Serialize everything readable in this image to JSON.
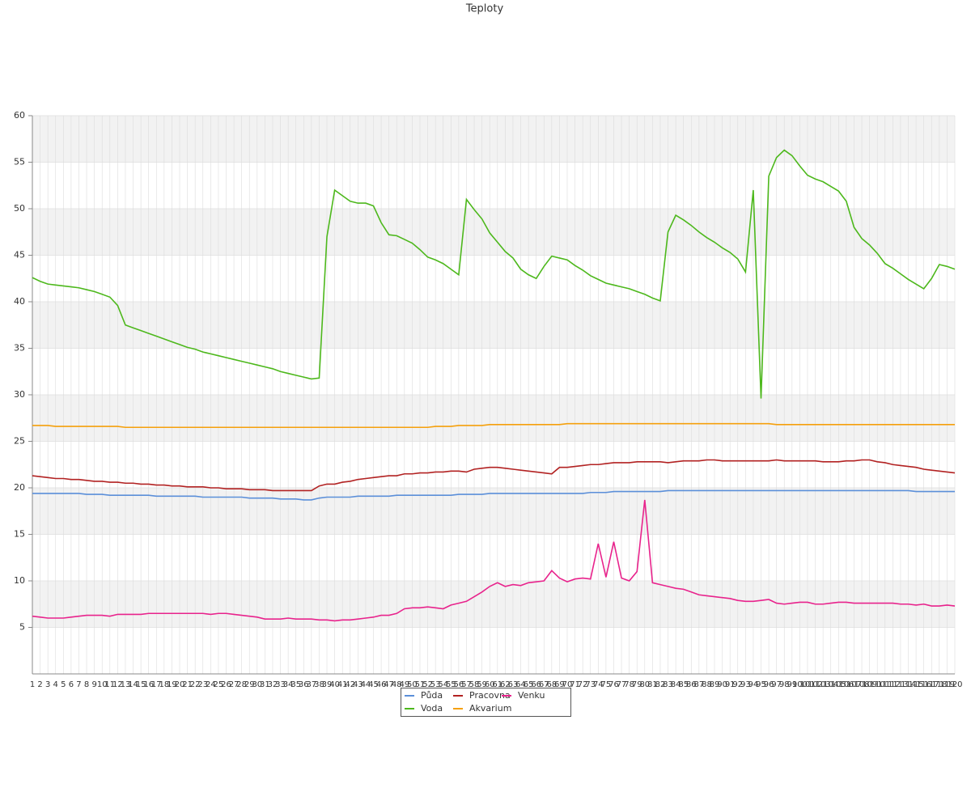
{
  "chart_data": {
    "type": "line",
    "title": "Teploty",
    "x": [
      1,
      2,
      3,
      4,
      5,
      6,
      7,
      8,
      9,
      10,
      11,
      12,
      13,
      14,
      15,
      16,
      17,
      18,
      19,
      20,
      21,
      22,
      23,
      24,
      25,
      26,
      27,
      28,
      29,
      30,
      31,
      32,
      33,
      34,
      35,
      36,
      37,
      38,
      39,
      40,
      41,
      42,
      43,
      44,
      45,
      46,
      47,
      48,
      49,
      50,
      51,
      52,
      53,
      54,
      55,
      56,
      57,
      58,
      59,
      60,
      61,
      62,
      63,
      64,
      65,
      66,
      67,
      68,
      69,
      70,
      71,
      72,
      73,
      74,
      75,
      76,
      77,
      78,
      79,
      80,
      81,
      82,
      83,
      84,
      85,
      86,
      87,
      88,
      89,
      90,
      91,
      92,
      93,
      94,
      95,
      96,
      97,
      98,
      99,
      100,
      101,
      102,
      103,
      104,
      105,
      106,
      107,
      108,
      109,
      110,
      111,
      112,
      113,
      114,
      115,
      116,
      117,
      118,
      119,
      120
    ],
    "xlim": [
      1,
      120
    ],
    "ylim": [
      0,
      60
    ],
    "yticks": [
      5,
      10,
      15,
      20,
      25,
      30,
      35,
      40,
      45,
      50,
      55,
      60
    ],
    "grid": true,
    "series": [
      {
        "name": "Půda",
        "color": "#5b8fd9",
        "values": [
          19.4,
          19.4,
          19.4,
          19.4,
          19.4,
          19.4,
          19.4,
          19.3,
          19.3,
          19.3,
          19.2,
          19.2,
          19.2,
          19.2,
          19.2,
          19.2,
          19.1,
          19.1,
          19.1,
          19.1,
          19.1,
          19.1,
          19.0,
          19.0,
          19.0,
          19.0,
          19.0,
          19.0,
          18.9,
          18.9,
          18.9,
          18.9,
          18.8,
          18.8,
          18.8,
          18.7,
          18.7,
          18.9,
          19.0,
          19.0,
          19.0,
          19.0,
          19.1,
          19.1,
          19.1,
          19.1,
          19.1,
          19.2,
          19.2,
          19.2,
          19.2,
          19.2,
          19.2,
          19.2,
          19.2,
          19.3,
          19.3,
          19.3,
          19.3,
          19.4,
          19.4,
          19.4,
          19.4,
          19.4,
          19.4,
          19.4,
          19.4,
          19.4,
          19.4,
          19.4,
          19.4,
          19.4,
          19.5,
          19.5,
          19.5,
          19.6,
          19.6,
          19.6,
          19.6,
          19.6,
          19.6,
          19.6,
          19.7,
          19.7,
          19.7,
          19.7,
          19.7,
          19.7,
          19.7,
          19.7,
          19.7,
          19.7,
          19.7,
          19.7,
          19.7,
          19.7,
          19.7,
          19.7,
          19.7,
          19.7,
          19.7,
          19.7,
          19.7,
          19.7,
          19.7,
          19.7,
          19.7,
          19.7,
          19.7,
          19.7,
          19.7,
          19.7,
          19.7,
          19.7,
          19.6,
          19.6,
          19.6,
          19.6,
          19.6,
          19.6
        ]
      },
      {
        "name": "Voda",
        "color": "#4db81c",
        "values": [
          42.6,
          42.2,
          41.9,
          41.8,
          41.7,
          41.6,
          41.5,
          41.3,
          41.1,
          40.8,
          40.5,
          39.6,
          37.5,
          37.2,
          36.9,
          36.6,
          36.3,
          36.0,
          35.7,
          35.4,
          35.1,
          34.9,
          34.6,
          34.4,
          34.2,
          34.0,
          33.8,
          33.6,
          33.4,
          33.2,
          33.0,
          32.8,
          32.5,
          32.3,
          32.1,
          31.9,
          31.7,
          31.8,
          47.0,
          52.0,
          51.4,
          50.8,
          50.6,
          50.6,
          50.3,
          48.5,
          47.2,
          47.1,
          46.7,
          46.3,
          45.6,
          44.8,
          44.5,
          44.1,
          43.5,
          42.9,
          51.0,
          49.9,
          48.9,
          47.4,
          46.4,
          45.4,
          44.7,
          43.5,
          42.9,
          42.5,
          43.8,
          44.9,
          44.7,
          44.5,
          43.9,
          43.4,
          42.8,
          42.4,
          42.0,
          41.8,
          41.6,
          41.4,
          41.1,
          40.8,
          40.4,
          40.1,
          47.5,
          49.3,
          48.8,
          48.2,
          47.5,
          46.9,
          46.4,
          45.8,
          45.3,
          44.6,
          43.2,
          52.0,
          29.6,
          53.5,
          55.5,
          56.3,
          55.7,
          54.6,
          53.6,
          53.2,
          52.9,
          52.4,
          51.9,
          50.8,
          48.0,
          46.8,
          46.1,
          45.2,
          44.1,
          43.6,
          43.0,
          42.4,
          41.9,
          41.4,
          42.5,
          44.0,
          43.8,
          43.5
        ]
      },
      {
        "name": "Pracovna",
        "color": "#b22222",
        "values": [
          21.3,
          21.2,
          21.1,
          21.0,
          21.0,
          20.9,
          20.9,
          20.8,
          20.7,
          20.7,
          20.6,
          20.6,
          20.5,
          20.5,
          20.4,
          20.4,
          20.3,
          20.3,
          20.2,
          20.2,
          20.1,
          20.1,
          20.1,
          20.0,
          20.0,
          19.9,
          19.9,
          19.9,
          19.8,
          19.8,
          19.8,
          19.7,
          19.7,
          19.7,
          19.7,
          19.7,
          19.7,
          20.2,
          20.4,
          20.4,
          20.6,
          20.7,
          20.9,
          21.0,
          21.1,
          21.2,
          21.3,
          21.3,
          21.5,
          21.5,
          21.6,
          21.6,
          21.7,
          21.7,
          21.8,
          21.8,
          21.7,
          22.0,
          22.1,
          22.2,
          22.2,
          22.1,
          22.0,
          21.9,
          21.8,
          21.7,
          21.6,
          21.5,
          22.2,
          22.2,
          22.3,
          22.4,
          22.5,
          22.5,
          22.6,
          22.7,
          22.7,
          22.7,
          22.8,
          22.8,
          22.8,
          22.8,
          22.7,
          22.8,
          22.9,
          22.9,
          22.9,
          23.0,
          23.0,
          22.9,
          22.9,
          22.9,
          22.9,
          22.9,
          22.9,
          22.9,
          23.0,
          22.9,
          22.9,
          22.9,
          22.9,
          22.9,
          22.8,
          22.8,
          22.8,
          22.9,
          22.9,
          23.0,
          23.0,
          22.8,
          22.7,
          22.5,
          22.4,
          22.3,
          22.2,
          22.0,
          21.9,
          21.8,
          21.7,
          21.6
        ]
      },
      {
        "name": "Akvarium",
        "color": "#f5a00c",
        "values": [
          26.7,
          26.7,
          26.7,
          26.6,
          26.6,
          26.6,
          26.6,
          26.6,
          26.6,
          26.6,
          26.6,
          26.6,
          26.5,
          26.5,
          26.5,
          26.5,
          26.5,
          26.5,
          26.5,
          26.5,
          26.5,
          26.5,
          26.5,
          26.5,
          26.5,
          26.5,
          26.5,
          26.5,
          26.5,
          26.5,
          26.5,
          26.5,
          26.5,
          26.5,
          26.5,
          26.5,
          26.5,
          26.5,
          26.5,
          26.5,
          26.5,
          26.5,
          26.5,
          26.5,
          26.5,
          26.5,
          26.5,
          26.5,
          26.5,
          26.5,
          26.5,
          26.5,
          26.6,
          26.6,
          26.6,
          26.7,
          26.7,
          26.7,
          26.7,
          26.8,
          26.8,
          26.8,
          26.8,
          26.8,
          26.8,
          26.8,
          26.8,
          26.8,
          26.8,
          26.9,
          26.9,
          26.9,
          26.9,
          26.9,
          26.9,
          26.9,
          26.9,
          26.9,
          26.9,
          26.9,
          26.9,
          26.9,
          26.9,
          26.9,
          26.9,
          26.9,
          26.9,
          26.9,
          26.9,
          26.9,
          26.9,
          26.9,
          26.9,
          26.9,
          26.9,
          26.9,
          26.8,
          26.8,
          26.8,
          26.8,
          26.8,
          26.8,
          26.8,
          26.8,
          26.8,
          26.8,
          26.8,
          26.8,
          26.8,
          26.8,
          26.8,
          26.8,
          26.8,
          26.8,
          26.8,
          26.8,
          26.8,
          26.8,
          26.8,
          26.8
        ]
      },
      {
        "name": "Venku",
        "color": "#e8238c",
        "values": [
          6.2,
          6.1,
          6.0,
          6.0,
          6.0,
          6.1,
          6.2,
          6.3,
          6.3,
          6.3,
          6.2,
          6.4,
          6.4,
          6.4,
          6.4,
          6.5,
          6.5,
          6.5,
          6.5,
          6.5,
          6.5,
          6.5,
          6.5,
          6.4,
          6.5,
          6.5,
          6.4,
          6.3,
          6.2,
          6.1,
          5.9,
          5.9,
          5.9,
          6.0,
          5.9,
          5.9,
          5.9,
          5.8,
          5.8,
          5.7,
          5.8,
          5.8,
          5.9,
          6.0,
          6.1,
          6.3,
          6.3,
          6.5,
          7.0,
          7.1,
          7.1,
          7.2,
          7.1,
          7.0,
          7.4,
          7.6,
          7.8,
          8.3,
          8.8,
          9.4,
          9.8,
          9.4,
          9.6,
          9.5,
          9.8,
          9.9,
          10.0,
          11.1,
          10.3,
          9.9,
          10.2,
          10.3,
          10.2,
          14.0,
          10.4,
          14.2,
          10.3,
          10.0,
          11.0,
          18.7,
          9.8,
          9.6,
          9.4,
          9.2,
          9.1,
          8.8,
          8.5,
          8.4,
          8.3,
          8.2,
          8.1,
          7.9,
          7.8,
          7.8,
          7.9,
          8.0,
          7.6,
          7.5,
          7.6,
          7.7,
          7.7,
          7.5,
          7.5,
          7.6,
          7.7,
          7.7,
          7.6,
          7.6,
          7.6,
          7.6,
          7.6,
          7.6,
          7.5,
          7.5,
          7.4,
          7.5,
          7.3,
          7.3,
          7.4,
          7.3
        ]
      }
    ]
  }
}
